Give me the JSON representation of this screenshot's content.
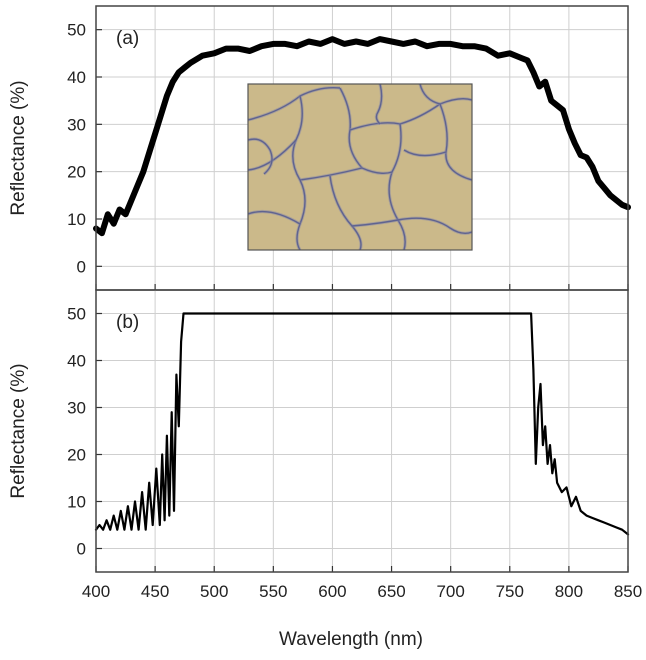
{
  "chart_data": [
    {
      "type": "line",
      "panel_label": "(a)",
      "xlabel": "",
      "ylabel": "Reflectance (%)",
      "xlim": [
        400,
        850
      ],
      "ylim": [
        -5,
        55
      ],
      "x_ticks": [
        400,
        450,
        500,
        550,
        600,
        650,
        700,
        750,
        800,
        850
      ],
      "y_ticks": [
        0,
        10,
        20,
        30,
        40,
        50
      ],
      "grid": true,
      "line_color": "#000000",
      "inset": "micrograph-of-cracked-film",
      "series": [
        {
          "x": [
            400,
            405,
            410,
            415,
            420,
            425,
            430,
            435,
            440,
            445,
            450,
            455,
            460,
            465,
            470,
            475,
            480,
            490,
            500,
            510,
            520,
            530,
            540,
            550,
            560,
            570,
            580,
            590,
            600,
            610,
            620,
            630,
            640,
            650,
            660,
            670,
            680,
            690,
            700,
            710,
            720,
            730,
            740,
            750,
            760,
            765,
            770,
            775,
            780,
            785,
            790,
            795,
            800,
            805,
            810,
            815,
            820,
            825,
            830,
            835,
            840,
            845,
            850
          ],
          "values": [
            8,
            7,
            11,
            9,
            12,
            11,
            14,
            17,
            20,
            24,
            28,
            32,
            36,
            39,
            41,
            42,
            43,
            44.5,
            45,
            46,
            46,
            45.5,
            46.5,
            47,
            47,
            46.5,
            47.5,
            47,
            48,
            47,
            47.5,
            47,
            48,
            47.5,
            47,
            47.5,
            46.5,
            47,
            47,
            46.5,
            46.5,
            46,
            44.5,
            45,
            44,
            43.5,
            41,
            38,
            39,
            35,
            34,
            33,
            29,
            26,
            23.5,
            23,
            21,
            18,
            16.5,
            15,
            14,
            13,
            12.5
          ]
        }
      ]
    },
    {
      "type": "line",
      "panel_label": "(b)",
      "xlabel": "Wavelength (nm)",
      "ylabel": "Reflectance (%)",
      "xlim": [
        400,
        850
      ],
      "ylim": [
        -5,
        55
      ],
      "x_ticks": [
        400,
        450,
        500,
        550,
        600,
        650,
        700,
        750,
        800,
        850
      ],
      "y_ticks": [
        0,
        10,
        20,
        30,
        40,
        50
      ],
      "grid": true,
      "line_color": "#000000",
      "series": [
        {
          "x": [
            400,
            403,
            406,
            409,
            412,
            415,
            418,
            421,
            424,
            427,
            430,
            433,
            436,
            439,
            442,
            445,
            448,
            451,
            454,
            456,
            458,
            460,
            462,
            464,
            466,
            468,
            470,
            472,
            474,
            500,
            550,
            600,
            650,
            700,
            750,
            768,
            770,
            772,
            774,
            776,
            778,
            780,
            782,
            784,
            786,
            788,
            790,
            794,
            798,
            802,
            806,
            810,
            815,
            820,
            825,
            830,
            835,
            840,
            845,
            850
          ],
          "values": [
            4,
            5,
            4,
            6,
            4,
            7,
            4,
            8,
            4,
            9,
            4,
            10,
            4,
            12,
            4,
            14,
            5,
            17,
            5,
            20,
            6,
            24,
            7,
            29,
            8,
            37,
            26,
            44,
            50,
            50,
            50,
            50,
            50,
            50,
            50,
            50,
            38,
            18,
            30,
            35,
            22,
            26,
            18,
            22,
            16,
            19,
            14,
            12,
            13,
            9,
            11,
            8,
            7,
            6.5,
            6,
            5.5,
            5,
            4.5,
            4,
            3
          ]
        }
      ]
    }
  ]
}
